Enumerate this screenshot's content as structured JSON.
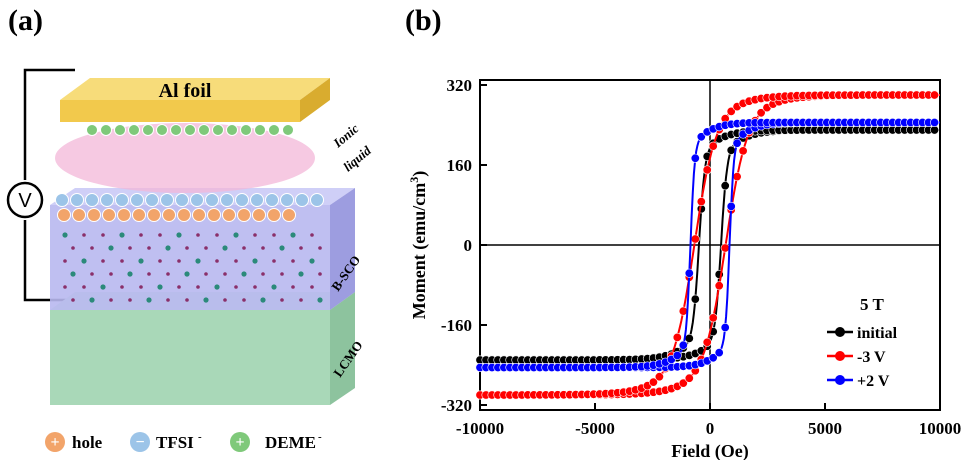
{
  "panels": {
    "a_label": "(a)",
    "b_label": "(b)"
  },
  "schematic": {
    "top_electrode": "Al foil",
    "ionic_liquid_line1": "Ionic",
    "ionic_liquid_line2": "liquid",
    "film_label": "B-SCO",
    "substrate_label": "LCMO",
    "voltage_symbol": "V",
    "legend": [
      {
        "symbol": "+",
        "label": "hole",
        "color": "#f2a46a"
      },
      {
        "symbol": "−",
        "label": "TFSI",
        "superscript": "-",
        "color": "#9cc4e8"
      },
      {
        "symbol": "+",
        "label": "DEME",
        "superscript": "-",
        "color": "#7fc97a"
      }
    ],
    "colors": {
      "foil": "#f2c94c",
      "ionic": "#f3b7d8",
      "film": "#b8b8f0",
      "substrate": "#a9d8b8"
    }
  },
  "chart_data": {
    "type": "line",
    "xlabel": "Field (Oe)",
    "ylabel": "Moment (emu/cm",
    "ylabel_sup": "3",
    "ylabel_close": ")",
    "xlim": [
      -10000,
      10000
    ],
    "ylim": [
      -330,
      330
    ],
    "xticks": [
      -10000,
      -5000,
      0,
      5000,
      10000
    ],
    "yticks": [
      -320,
      -160,
      0,
      160,
      320
    ],
    "legend_title": "5 T",
    "legend_position": "lower-right",
    "series": [
      {
        "name": "initial",
        "color": "#000000",
        "ms": 230,
        "hc": 480,
        "w": 260,
        "k": 0.00075
      },
      {
        "name": "-3 V",
        "color": "#ff0000",
        "ms": 300,
        "hc": 680,
        "w": 900,
        "k": 0.00048
      },
      {
        "name": "+2 V",
        "color": "#0000ff",
        "ms": 245,
        "hc": 850,
        "w": 180,
        "k": 0.0009
      }
    ]
  }
}
